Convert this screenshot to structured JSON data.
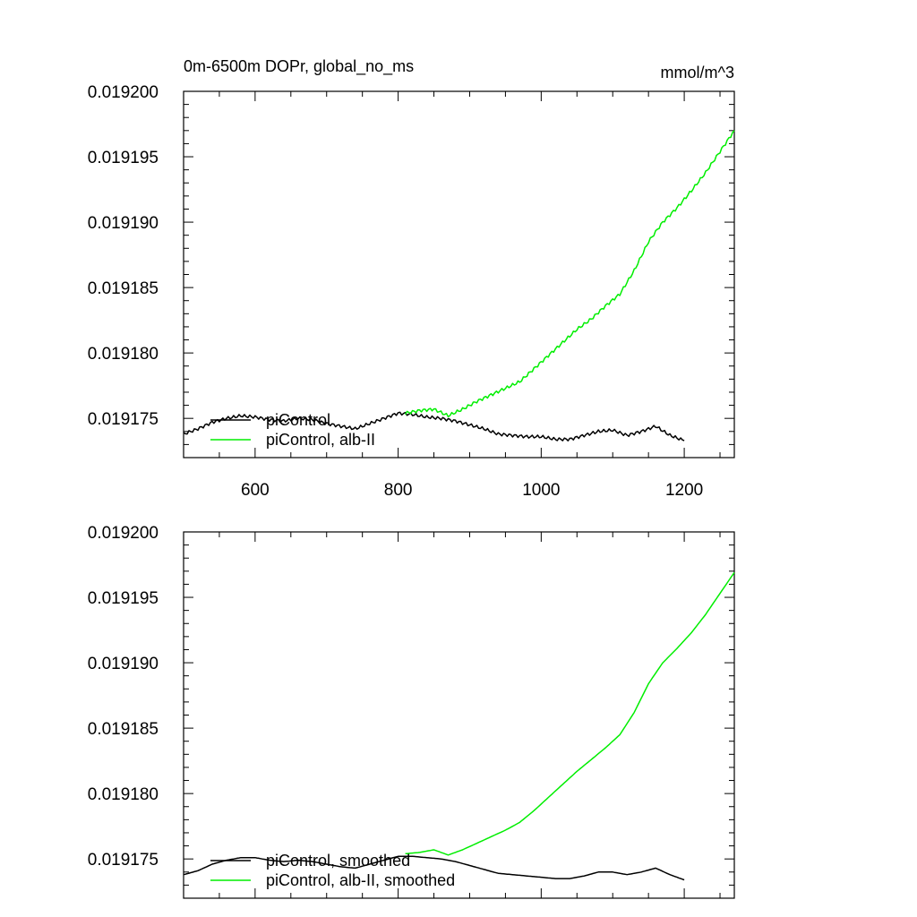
{
  "chart_data": [
    {
      "type": "line",
      "title": "0m-6500m DOPr, global_no_ms",
      "units": "mmol/m^3",
      "xlim": [
        500,
        1270
      ],
      "ylim": [
        0.019172,
        0.0192
      ],
      "xticks": [
        600,
        800,
        1000,
        1200
      ],
      "xtick_labels": [
        "600",
        "800",
        "1000",
        "1200"
      ],
      "yticks": [
        0.019175,
        0.01918,
        0.019185,
        0.01919,
        0.019195,
        0.0192
      ],
      "ytick_labels": [
        "0.019175",
        "0.019180",
        "0.019185",
        "0.019190",
        "0.019195",
        "0.019200"
      ],
      "legend_position": "bottom-left",
      "grid": false,
      "series": [
        {
          "name": "piControl",
          "color": "#000000",
          "x": [
            500,
            520,
            540,
            560,
            580,
            600,
            620,
            640,
            660,
            680,
            700,
            720,
            740,
            760,
            780,
            800,
            820,
            840,
            860,
            880,
            900,
            920,
            940,
            960,
            980,
            1000,
            1020,
            1040,
            1060,
            1080,
            1100,
            1120,
            1140,
            1160,
            1180,
            1200
          ],
          "y": [
            0.0191738,
            0.0191742,
            0.0191747,
            0.019175,
            0.0191752,
            0.0191751,
            0.0191749,
            0.0191748,
            0.019175,
            0.0191749,
            0.0191746,
            0.0191744,
            0.0191742,
            0.0191746,
            0.019175,
            0.0191754,
            0.0191753,
            0.0191751,
            0.019175,
            0.0191748,
            0.0191745,
            0.0191742,
            0.0191738,
            0.0191737,
            0.0191736,
            0.0191736,
            0.0191734,
            0.0191734,
            0.0191737,
            0.019174,
            0.0191741,
            0.0191737,
            0.019174,
            0.0191744,
            0.0191737,
            0.0191733
          ]
        },
        {
          "name": "piControl, alb-II",
          "color": "#00ee00",
          "x": [
            810,
            830,
            850,
            870,
            890,
            910,
            930,
            950,
            970,
            990,
            1010,
            1030,
            1050,
            1070,
            1090,
            1110,
            1130,
            1150,
            1170,
            1190,
            1210,
            1230,
            1250,
            1270
          ],
          "y": [
            0.0191754,
            0.0191756,
            0.0191757,
            0.0191752,
            0.0191757,
            0.0191763,
            0.0191768,
            0.0191773,
            0.0191778,
            0.0191788,
            0.0191798,
            0.0191808,
            0.0191818,
            0.0191826,
            0.0191836,
            0.0191845,
            0.0191863,
            0.0191885,
            0.01919,
            0.0191911,
            0.0191924,
            0.0191938,
            0.0191954,
            0.019197
          ]
        }
      ]
    },
    {
      "type": "line",
      "title": "",
      "xlim": [
        500,
        1270
      ],
      "ylim": [
        0.019172,
        0.0192
      ],
      "xticks": [
        600,
        800,
        1000,
        1200
      ],
      "yticks": [
        0.019175,
        0.01918,
        0.019185,
        0.01919,
        0.019195,
        0.0192
      ],
      "ytick_labels": [
        "0.019175",
        "0.019180",
        "0.019185",
        "0.019190",
        "0.019195",
        "0.019200"
      ],
      "legend_position": "bottom-left",
      "grid": false,
      "series": [
        {
          "name": "piControl, smoothed",
          "color": "#000000",
          "x": [
            500,
            520,
            540,
            560,
            580,
            600,
            620,
            640,
            660,
            680,
            700,
            720,
            740,
            760,
            780,
            800,
            820,
            840,
            860,
            880,
            900,
            920,
            940,
            960,
            980,
            1000,
            1020,
            1040,
            1060,
            1080,
            1100,
            1120,
            1140,
            1160,
            1180,
            1200
          ],
          "y": [
            0.0191738,
            0.0191741,
            0.0191746,
            0.0191749,
            0.0191751,
            0.0191751,
            0.0191749,
            0.0191748,
            0.0191749,
            0.0191748,
            0.0191746,
            0.0191744,
            0.0191743,
            0.0191746,
            0.0191749,
            0.0191752,
            0.0191752,
            0.0191751,
            0.019175,
            0.0191748,
            0.0191745,
            0.0191742,
            0.0191739,
            0.0191738,
            0.0191737,
            0.0191736,
            0.0191735,
            0.0191735,
            0.0191737,
            0.019174,
            0.019174,
            0.0191738,
            0.019174,
            0.0191743,
            0.0191738,
            0.0191734
          ]
        },
        {
          "name": "piControl, alb-II, smoothed",
          "color": "#00ee00",
          "x": [
            810,
            830,
            850,
            870,
            890,
            910,
            930,
            950,
            970,
            990,
            1010,
            1030,
            1050,
            1070,
            1090,
            1110,
            1130,
            1150,
            1170,
            1190,
            1210,
            1230,
            1250,
            1270
          ],
          "y": [
            0.0191754,
            0.0191755,
            0.0191757,
            0.0191753,
            0.0191757,
            0.0191762,
            0.0191767,
            0.0191772,
            0.0191778,
            0.0191787,
            0.0191797,
            0.0191807,
            0.0191817,
            0.0191826,
            0.0191835,
            0.0191845,
            0.0191862,
            0.0191884,
            0.01919,
            0.0191911,
            0.0191923,
            0.0191937,
            0.0191953,
            0.0191969
          ]
        }
      ]
    }
  ]
}
